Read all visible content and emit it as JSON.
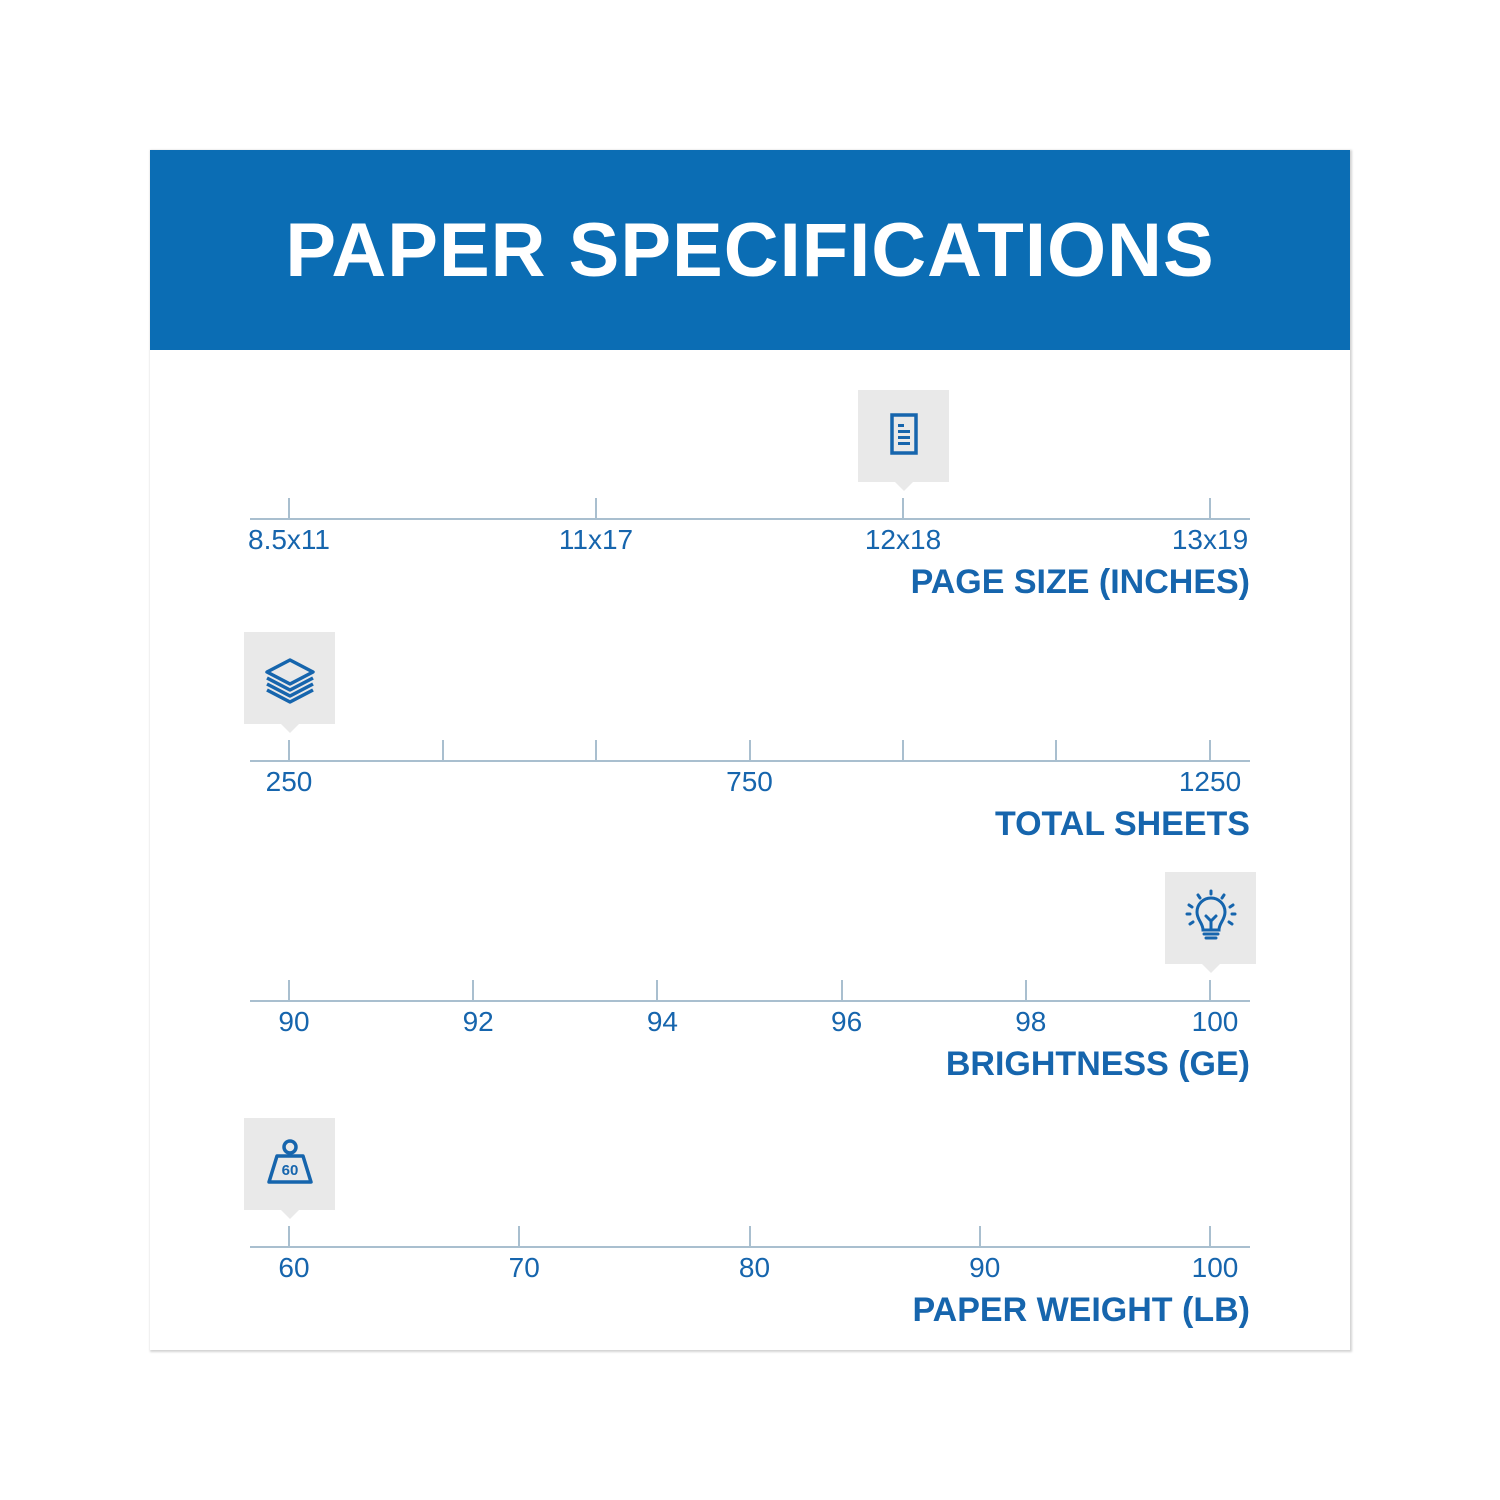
{
  "title": "PAPER SPECIFICATIONS",
  "colors": {
    "header": "#0b6db4",
    "text": "#1665ad",
    "axis": "#a9bfcf",
    "marker_bg": "#e9e9e9"
  },
  "scales": [
    {
      "title": "PAGE SIZE (INCHES)",
      "type": "categorical",
      "ticks": [
        "8.5x11",
        "11x17",
        "12x18",
        "13x19"
      ],
      "labels": [
        "8.5x11",
        "11x17",
        "12x18",
        "13x19"
      ],
      "selected": "12x18",
      "icon": "document-icon"
    },
    {
      "title": "TOTAL SHEETS",
      "type": "numeric",
      "range": [
        250,
        1250
      ],
      "ticks": [
        250,
        416.7,
        583.3,
        750,
        916.7,
        1083.3,
        1250
      ],
      "labels": [
        "250",
        "750",
        "1250"
      ],
      "selected": 250,
      "icon": "paper-stack-icon"
    },
    {
      "title": "BRIGHTNESS (GE)",
      "type": "numeric",
      "range": [
        90,
        100
      ],
      "ticks": [
        90,
        92,
        94,
        96,
        98,
        100
      ],
      "labels": [
        "90",
        "92",
        "94",
        "96",
        "98",
        "100"
      ],
      "selected": 100,
      "icon": "lightbulb-icon"
    },
    {
      "title": "PAPER WEIGHT (LB)",
      "type": "numeric",
      "range": [
        60,
        100
      ],
      "ticks": [
        60,
        70,
        80,
        90,
        100
      ],
      "labels": [
        "60",
        "70",
        "80",
        "90",
        "100"
      ],
      "selected": 60,
      "icon": "weight-icon",
      "icon_text": "60"
    }
  ]
}
